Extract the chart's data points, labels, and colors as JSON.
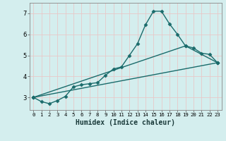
{
  "xlabel": "Humidex (Indice chaleur)",
  "bg_color": "#d4eeee",
  "grid_color": "#e8c8c8",
  "line_color": "#1a6b6b",
  "xlim": [
    -0.5,
    23.5
  ],
  "ylim": [
    2.4,
    7.5
  ],
  "yticks": [
    3,
    4,
    5,
    6,
    7
  ],
  "xticks": [
    0,
    1,
    2,
    3,
    4,
    5,
    6,
    7,
    8,
    9,
    10,
    11,
    12,
    13,
    14,
    15,
    16,
    17,
    18,
    19,
    20,
    21,
    22,
    23
  ],
  "curve1_x": [
    0,
    1,
    2,
    3,
    4,
    5,
    6,
    7,
    8,
    9,
    10,
    11,
    12,
    13,
    14,
    15,
    16,
    17,
    18,
    19,
    20,
    21,
    22,
    23
  ],
  "curve1_y": [
    3.0,
    2.8,
    2.7,
    2.85,
    3.05,
    3.5,
    3.6,
    3.65,
    3.7,
    4.05,
    4.35,
    4.45,
    5.0,
    5.55,
    6.45,
    7.1,
    7.1,
    6.5,
    6.0,
    5.45,
    5.35,
    5.1,
    5.05,
    4.65
  ],
  "curve2_x": [
    0,
    23
  ],
  "curve2_y": [
    3.0,
    4.65
  ],
  "curve3_x": [
    0,
    19,
    23
  ],
  "curve3_y": [
    3.0,
    5.45,
    4.65
  ],
  "marker": "D",
  "markersize": 2.5,
  "linewidth": 1.0
}
